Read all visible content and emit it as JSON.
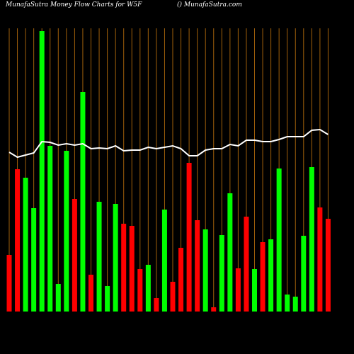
{
  "chart_data": {
    "type": "bar",
    "title": "MunafaSutra  Money Flow  Charts for W5F",
    "subtitle": "() MunafaSutra.com",
    "series": [
      {
        "name": "Money Flow",
        "values": [
          80,
          201,
          189,
          146,
          396,
          234,
          39,
          227,
          159,
          310,
          52,
          155,
          36,
          152,
          124,
          121,
          60,
          66,
          19,
          144,
          42,
          90,
          210,
          129,
          116,
          6,
          108,
          167,
          61,
          134,
          60,
          98,
          102,
          202,
          24,
          21,
          107,
          204,
          147,
          131
        ],
        "colors": [
          "#ff0000",
          "#ff0000",
          "#00ff00",
          "#00ff00",
          "#00ff00",
          "#00ff00",
          "#00ff00",
          "#00ff00",
          "#ff0000",
          "#00ff00",
          "#ff0000",
          "#00ff00",
          "#00ff00",
          "#00ff00",
          "#ff0000",
          "#ff0000",
          "#ff0000",
          "#00ff00",
          "#ff0000",
          "#00ff00",
          "#ff0000",
          "#ff0000",
          "#ff0000",
          "#ff0000",
          "#00ff00",
          "#ff0000",
          "#00ff00",
          "#00ff00",
          "#ff0000",
          "#ff0000",
          "#00ff00",
          "#ff0000",
          "#00ff00",
          "#00ff00",
          "#00ff00",
          "#00ff00",
          "#00ff00",
          "#00ff00",
          "#ff0000",
          "#ff0000"
        ]
      },
      {
        "name": "Price",
        "color": "#ffffff",
        "values": [
          225,
          218,
          221,
          224,
          240,
          239,
          235,
          237,
          235,
          237,
          230,
          231,
          230,
          234,
          227,
          228,
          228,
          232,
          230,
          232,
          234,
          230,
          220,
          220,
          228,
          230,
          230,
          236,
          234,
          242,
          242,
          240,
          240,
          243,
          247,
          247,
          247,
          256,
          257,
          250
        ]
      }
    ],
    "ylim": [
      0,
      400
    ],
    "grid_color": "#a0600a"
  }
}
